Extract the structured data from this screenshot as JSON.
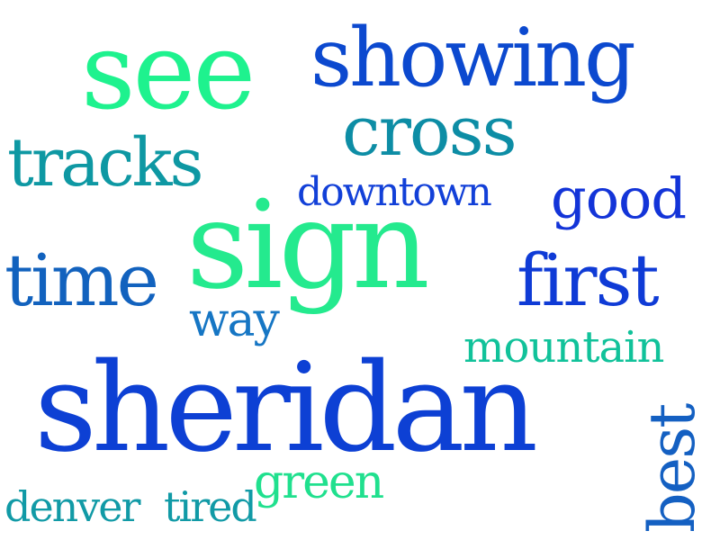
{
  "words": [
    {
      "text": "see",
      "color": "#1ef28e"
    },
    {
      "text": "showing",
      "color": "#0c49cf"
    },
    {
      "text": "cross",
      "color": "#0d8da5"
    },
    {
      "text": "tracks",
      "color": "#0e98a3"
    },
    {
      "text": "downtown",
      "color": "#1240d8"
    },
    {
      "text": "good",
      "color": "#1334d8"
    },
    {
      "text": "sign",
      "color": "#24ea8e"
    },
    {
      "text": "time",
      "color": "#1262be"
    },
    {
      "text": "first",
      "color": "#0f3bd6"
    },
    {
      "text": "way",
      "color": "#1676c4"
    },
    {
      "text": "mountain",
      "color": "#11c29a"
    },
    {
      "text": "sheridan",
      "color": "#0d40d4"
    },
    {
      "text": "best",
      "color": "#1460c2"
    },
    {
      "text": "green",
      "color": "#20e08e"
    },
    {
      "text": "denver",
      "color": "#119aa6"
    },
    {
      "text": "tired",
      "color": "#119aa6"
    }
  ]
}
